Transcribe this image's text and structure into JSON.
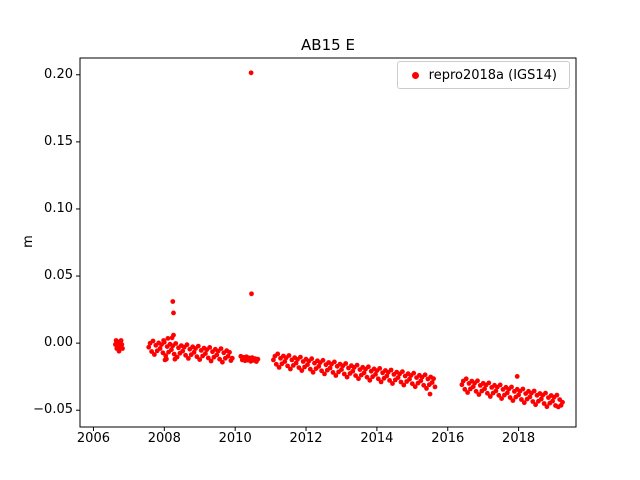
{
  "window": {
    "background": "#ffffff"
  },
  "chart_data": {
    "type": "scatter",
    "title": "AB15 E",
    "xlabel": "",
    "ylabel": "m",
    "grid": false,
    "legend": {
      "label": "repro2018a (IGS14)",
      "position": "upper right",
      "marker_color": "#ff0000"
    },
    "marker": {
      "color": "#ff0000",
      "size": 5
    },
    "xlim": [
      2005.62,
      2019.62
    ],
    "ylim": [
      -0.0625,
      0.2125
    ],
    "xticks": {
      "values": [
        2006,
        2008,
        2010,
        2012,
        2014,
        2016,
        2018
      ],
      "labels": [
        "2006",
        "2008",
        "2010",
        "2012",
        "2014",
        "2016",
        "2018"
      ]
    },
    "yticks": {
      "values": [
        -0.05,
        0.0,
        0.05,
        0.1,
        0.15,
        0.2
      ],
      "labels": [
        "−0.05",
        "0.00",
        "0.05",
        "0.10",
        "0.15",
        "0.20"
      ]
    },
    "series": [
      {
        "name": "repro2018a (IGS14)",
        "points": [
          [
            2006.62,
            -0.001
          ],
          [
            2006.64,
            0.002
          ],
          [
            2006.66,
            -0.004
          ],
          [
            2006.68,
            0.001
          ],
          [
            2006.7,
            -0.002
          ],
          [
            2006.72,
            -0.006
          ],
          [
            2006.74,
            0.0
          ],
          [
            2006.76,
            -0.003
          ],
          [
            2006.78,
            0.002
          ],
          [
            2006.8,
            -0.001
          ],
          [
            2006.82,
            -0.004
          ],
          [
            2007.56,
            -0.003
          ],
          [
            2007.6,
            -0.0001
          ],
          [
            2007.64,
            -0.0062
          ],
          [
            2007.68,
            0.0016
          ],
          [
            2007.72,
            -0.0085
          ],
          [
            2007.76,
            -0.0016
          ],
          [
            2007.8,
            -0.0057
          ],
          [
            2007.84,
            0.0002
          ],
          [
            2007.88,
            -0.004
          ],
          [
            2007.92,
            -0.0011
          ],
          [
            2007.96,
            -0.0072
          ],
          [
            2007.98,
            0.002
          ],
          [
            2008.0,
            0.0007
          ],
          [
            2008.02,
            -0.0125
          ],
          [
            2008.04,
            -0.0094
          ],
          [
            2008.06,
            -0.0118
          ],
          [
            2008.08,
            -0.0026
          ],
          [
            2008.1,
            0.0035
          ],
          [
            2008.12,
            -0.0067
          ],
          [
            2008.16,
            -0.0008
          ],
          [
            2008.2,
            -0.0049
          ],
          [
            2008.22,
            0.004
          ],
          [
            2008.24,
            -0.002
          ],
          [
            2008.24,
            0.031
          ],
          [
            2008.26,
            0.0225
          ],
          [
            2008.26,
            0.006
          ],
          [
            2008.28,
            -0.0082
          ],
          [
            2008.3,
            -0.012
          ],
          [
            2008.32,
            -0.0003
          ],
          [
            2008.36,
            -0.0104
          ],
          [
            2008.4,
            -0.0035
          ],
          [
            2008.44,
            -0.0076
          ],
          [
            2008.48,
            -0.0018
          ],
          [
            2008.52,
            -0.0059
          ],
          [
            2008.56,
            -0.003
          ],
          [
            2008.6,
            -0.0091
          ],
          [
            2008.64,
            -0.0012
          ],
          [
            2008.68,
            -0.0114
          ],
          [
            2008.72,
            -0.0045
          ],
          [
            2008.76,
            -0.0086
          ],
          [
            2008.8,
            -0.0027
          ],
          [
            2008.84,
            -0.0068
          ],
          [
            2008.88,
            -0.004
          ],
          [
            2008.92,
            -0.0101
          ],
          [
            2008.96,
            -0.0022
          ],
          [
            2009.0,
            -0.0123
          ],
          [
            2009.04,
            -0.0054
          ],
          [
            2009.08,
            -0.0096
          ],
          [
            2009.12,
            -0.0037
          ],
          [
            2009.16,
            -0.0078
          ],
          [
            2009.2,
            -0.0049
          ],
          [
            2009.24,
            -0.011
          ],
          [
            2009.28,
            -0.0032
          ],
          [
            2009.32,
            -0.0133
          ],
          [
            2009.36,
            -0.0064
          ],
          [
            2009.4,
            -0.0105
          ],
          [
            2009.44,
            -0.0046
          ],
          [
            2009.48,
            -0.0088
          ],
          [
            2009.52,
            -0.0059
          ],
          [
            2009.56,
            -0.012
          ],
          [
            2009.6,
            -0.0041
          ],
          [
            2009.64,
            -0.0142
          ],
          [
            2009.68,
            -0.0072
          ],
          [
            2009.72,
            -0.0113
          ],
          [
            2009.76,
            -0.0056
          ],
          [
            2009.8,
            -0.0097
          ],
          [
            2009.84,
            -0.0068
          ],
          [
            2009.88,
            -0.013
          ],
          [
            2009.92,
            -0.0112
          ],
          [
            2010.16,
            -0.0098
          ],
          [
            2010.2,
            -0.0125
          ],
          [
            2010.24,
            -0.0106
          ],
          [
            2010.28,
            -0.0131
          ],
          [
            2010.32,
            -0.0102
          ],
          [
            2010.36,
            -0.0127
          ],
          [
            2010.4,
            -0.011
          ],
          [
            2010.44,
            -0.0135
          ],
          [
            2010.45,
            0.2015
          ],
          [
            2010.46,
            0.0368
          ],
          [
            2010.48,
            -0.0108
          ],
          [
            2010.52,
            -0.0128
          ],
          [
            2010.56,
            -0.0115
          ],
          [
            2010.6,
            -0.0137
          ],
          [
            2010.64,
            -0.012
          ],
          [
            2011.08,
            -0.0125
          ],
          [
            2011.12,
            -0.0097
          ],
          [
            2011.16,
            -0.0158
          ],
          [
            2011.2,
            -0.008
          ],
          [
            2011.24,
            -0.0181
          ],
          [
            2011.28,
            -0.0113
          ],
          [
            2011.32,
            -0.0154
          ],
          [
            2011.36,
            -0.0096
          ],
          [
            2011.4,
            -0.0137
          ],
          [
            2011.44,
            -0.0109
          ],
          [
            2011.48,
            -0.017
          ],
          [
            2011.52,
            -0.0092
          ],
          [
            2011.56,
            -0.0193
          ],
          [
            2011.6,
            -0.0125
          ],
          [
            2011.64,
            -0.0166
          ],
          [
            2011.68,
            -0.0108
          ],
          [
            2011.72,
            -0.0149
          ],
          [
            2011.76,
            -0.0121
          ],
          [
            2011.8,
            -0.0182
          ],
          [
            2011.84,
            -0.0104
          ],
          [
            2011.88,
            -0.0205
          ],
          [
            2011.92,
            -0.0137
          ],
          [
            2011.96,
            -0.0178
          ],
          [
            2012.0,
            -0.012
          ],
          [
            2012.04,
            -0.0161
          ],
          [
            2012.08,
            -0.0133
          ],
          [
            2012.12,
            -0.0194
          ],
          [
            2012.16,
            -0.0116
          ],
          [
            2012.2,
            -0.0217
          ],
          [
            2012.24,
            -0.0149
          ],
          [
            2012.28,
            -0.019
          ],
          [
            2012.32,
            -0.0132
          ],
          [
            2012.36,
            -0.0173
          ],
          [
            2012.4,
            -0.0145
          ],
          [
            2012.44,
            -0.0206
          ],
          [
            2012.48,
            -0.0128
          ],
          [
            2012.52,
            -0.0229
          ],
          [
            2012.56,
            -0.0161
          ],
          [
            2012.6,
            -0.0202
          ],
          [
            2012.64,
            -0.0144
          ],
          [
            2012.68,
            -0.0185
          ],
          [
            2012.72,
            -0.0157
          ],
          [
            2012.76,
            -0.0218
          ],
          [
            2012.8,
            -0.014
          ],
          [
            2012.84,
            -0.0241
          ],
          [
            2012.88,
            -0.0173
          ],
          [
            2012.92,
            -0.0214
          ],
          [
            2012.96,
            -0.0156
          ],
          [
            2013.0,
            -0.0197
          ],
          [
            2013.04,
            -0.0169
          ],
          [
            2013.08,
            -0.023
          ],
          [
            2013.12,
            -0.0152
          ],
          [
            2013.16,
            -0.0253
          ],
          [
            2013.2,
            -0.0185
          ],
          [
            2013.24,
            -0.0226
          ],
          [
            2013.28,
            -0.0168
          ],
          [
            2013.32,
            -0.0209
          ],
          [
            2013.36,
            -0.0181
          ],
          [
            2013.4,
            -0.0242
          ],
          [
            2013.44,
            -0.0164
          ],
          [
            2013.48,
            -0.0265
          ],
          [
            2013.52,
            -0.0197
          ],
          [
            2013.56,
            -0.0238
          ],
          [
            2013.6,
            -0.018
          ],
          [
            2013.64,
            -0.0221
          ],
          [
            2013.68,
            -0.0193
          ],
          [
            2013.72,
            -0.0254
          ],
          [
            2013.76,
            -0.0176
          ],
          [
            2013.8,
            -0.0277
          ],
          [
            2013.84,
            -0.0209
          ],
          [
            2013.88,
            -0.025
          ],
          [
            2013.92,
            -0.0192
          ],
          [
            2013.96,
            -0.0233
          ],
          [
            2014.0,
            -0.0205
          ],
          [
            2014.04,
            -0.0266
          ],
          [
            2014.08,
            -0.0188
          ],
          [
            2014.12,
            -0.0289
          ],
          [
            2014.16,
            -0.0221
          ],
          [
            2014.2,
            -0.0262
          ],
          [
            2014.24,
            -0.0204
          ],
          [
            2014.28,
            -0.0245
          ],
          [
            2014.32,
            -0.0217
          ],
          [
            2014.36,
            -0.0278
          ],
          [
            2014.4,
            -0.02
          ],
          [
            2014.44,
            -0.0301
          ],
          [
            2014.48,
            -0.0233
          ],
          [
            2014.52,
            -0.0274
          ],
          [
            2014.56,
            -0.0216
          ],
          [
            2014.6,
            -0.0257
          ],
          [
            2014.64,
            -0.0229
          ],
          [
            2014.68,
            -0.029
          ],
          [
            2014.72,
            -0.0212
          ],
          [
            2014.76,
            -0.0313
          ],
          [
            2014.8,
            -0.0245
          ],
          [
            2014.84,
            -0.0286
          ],
          [
            2014.88,
            -0.0228
          ],
          [
            2014.92,
            -0.0269
          ],
          [
            2014.96,
            -0.0241
          ],
          [
            2015.0,
            -0.0302
          ],
          [
            2015.04,
            -0.0224
          ],
          [
            2015.08,
            -0.0325
          ],
          [
            2015.12,
            -0.0257
          ],
          [
            2015.16,
            -0.0298
          ],
          [
            2015.2,
            -0.024
          ],
          [
            2015.24,
            -0.0281
          ],
          [
            2015.28,
            -0.0253
          ],
          [
            2015.32,
            -0.0314
          ],
          [
            2015.36,
            -0.0236
          ],
          [
            2015.4,
            -0.0337
          ],
          [
            2015.44,
            -0.0267
          ],
          [
            2015.48,
            -0.031
          ],
          [
            2015.5,
            -0.038
          ],
          [
            2015.52,
            -0.0252
          ],
          [
            2015.56,
            -0.0293
          ],
          [
            2015.6,
            -0.0265
          ],
          [
            2015.64,
            -0.0326
          ],
          [
            2016.4,
            -0.031
          ],
          [
            2016.44,
            -0.0282
          ],
          [
            2016.48,
            -0.0344
          ],
          [
            2016.52,
            -0.0266
          ],
          [
            2016.56,
            -0.0368
          ],
          [
            2016.6,
            -0.03
          ],
          [
            2016.64,
            -0.0341
          ],
          [
            2016.68,
            -0.0283
          ],
          [
            2016.72,
            -0.0325
          ],
          [
            2016.76,
            -0.0297
          ],
          [
            2016.8,
            -0.0359
          ],
          [
            2016.84,
            -0.0281
          ],
          [
            2016.88,
            -0.0383
          ],
          [
            2016.92,
            -0.0315
          ],
          [
            2016.96,
            -0.0357
          ],
          [
            2017.0,
            -0.0299
          ],
          [
            2017.04,
            -0.034
          ],
          [
            2017.08,
            -0.0312
          ],
          [
            2017.12,
            -0.0374
          ],
          [
            2017.16,
            -0.0296
          ],
          [
            2017.2,
            -0.0398
          ],
          [
            2017.24,
            -0.033
          ],
          [
            2017.28,
            -0.0372
          ],
          [
            2017.32,
            -0.0314
          ],
          [
            2017.36,
            -0.0356
          ],
          [
            2017.4,
            -0.0328
          ],
          [
            2017.44,
            -0.0389
          ],
          [
            2017.48,
            -0.0311
          ],
          [
            2017.52,
            -0.0413
          ],
          [
            2017.56,
            -0.0345
          ],
          [
            2017.6,
            -0.0387
          ],
          [
            2017.64,
            -0.0329
          ],
          [
            2017.68,
            -0.0371
          ],
          [
            2017.72,
            -0.0343
          ],
          [
            2017.76,
            -0.0405
          ],
          [
            2017.8,
            -0.0327
          ],
          [
            2017.84,
            -0.0428
          ],
          [
            2017.88,
            -0.036
          ],
          [
            2017.92,
            -0.0402
          ],
          [
            2017.96,
            -0.0248
          ],
          [
            2017.96,
            -0.0344
          ],
          [
            2018.0,
            -0.0386
          ],
          [
            2018.04,
            -0.0358
          ],
          [
            2018.08,
            -0.042
          ],
          [
            2018.12,
            -0.0342
          ],
          [
            2018.16,
            -0.0444
          ],
          [
            2018.2,
            -0.0376
          ],
          [
            2018.24,
            -0.0417
          ],
          [
            2018.28,
            -0.0359
          ],
          [
            2018.32,
            -0.0401
          ],
          [
            2018.36,
            -0.0373
          ],
          [
            2018.4,
            -0.0435
          ],
          [
            2018.44,
            -0.0357
          ],
          [
            2018.48,
            -0.0459
          ],
          [
            2018.52,
            -0.0389
          ],
          [
            2018.56,
            -0.0433
          ],
          [
            2018.6,
            -0.0375
          ],
          [
            2018.64,
            -0.0416
          ],
          [
            2018.68,
            -0.0388
          ],
          [
            2018.72,
            -0.045
          ],
          [
            2018.76,
            -0.0372
          ],
          [
            2018.8,
            -0.0474
          ],
          [
            2018.84,
            -0.0406
          ],
          [
            2018.88,
            -0.0448
          ],
          [
            2018.92,
            -0.039
          ],
          [
            2018.96,
            -0.0432
          ],
          [
            2019.0,
            -0.0404
          ],
          [
            2019.04,
            -0.0465
          ],
          [
            2019.08,
            -0.0387
          ],
          [
            2019.12,
            -0.0475
          ],
          [
            2019.16,
            -0.0421
          ],
          [
            2019.2,
            -0.0463
          ],
          [
            2019.24,
            -0.0441
          ]
        ]
      }
    ]
  }
}
